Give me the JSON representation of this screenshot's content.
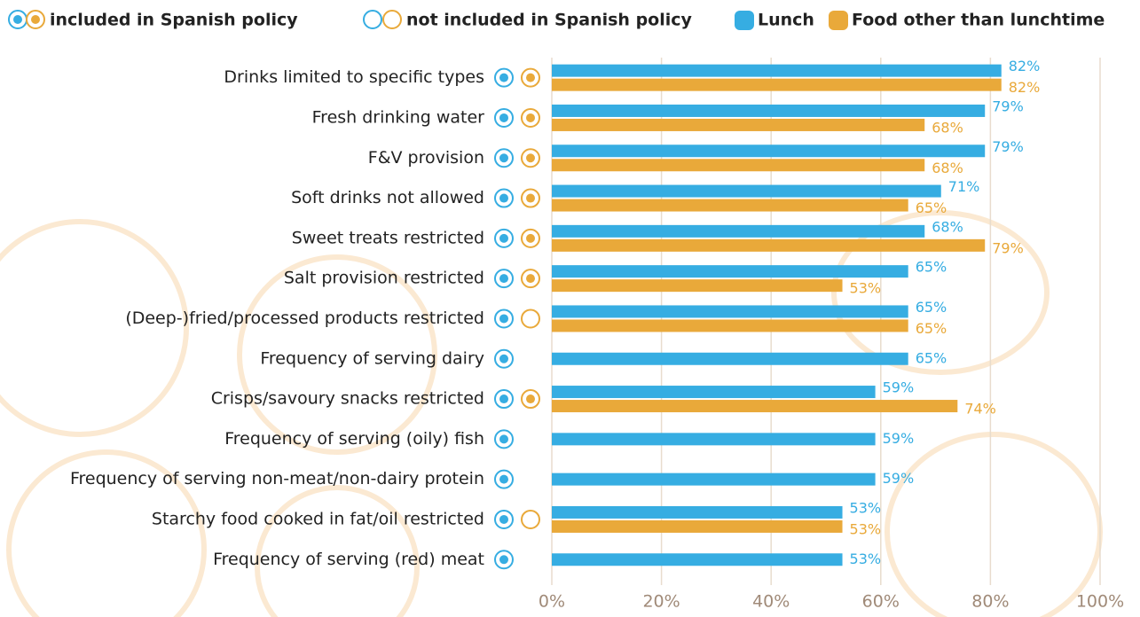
{
  "chart_data": {
    "type": "bar",
    "orientation": "horizontal",
    "policy_legend": [
      "included in Spanish policy",
      "not included in Spanish policy"
    ],
    "categories": [
      "Drinks limited to specific types",
      "Fresh drinking water",
      "F&V provision",
      "Soft drinks not allowed",
      "Sweet treats restricted",
      "Salt provision restricted",
      "(Deep-)fried/processed products restricted",
      "Frequency of serving dairy",
      "Crisps/savoury snacks restricted",
      "Frequency of serving (oily) fish",
      "Frequency of serving non-meat/non-dairy protein",
      "Starchy food cooked in fat/oil restricted",
      "Frequency of serving (red) meat"
    ],
    "series": [
      {
        "name": "Lunch",
        "color": "#36ade2",
        "values": [
          82,
          79,
          79,
          71,
          68,
          65,
          65,
          65,
          59,
          59,
          59,
          53,
          53
        ],
        "value_labels": [
          "82%",
          "79%",
          "79%",
          "71%",
          "68%",
          "65%",
          "65%",
          "65%",
          "59%",
          "59%",
          "59%",
          "53%",
          "53%"
        ],
        "included": [
          true,
          true,
          true,
          true,
          true,
          true,
          true,
          true,
          true,
          true,
          true,
          true,
          true
        ]
      },
      {
        "name": "Food other than lunchtime",
        "color": "#e9a93a",
        "values": [
          82,
          68,
          68,
          65,
          79,
          53,
          65,
          null,
          74,
          null,
          null,
          53,
          null
        ],
        "value_labels": [
          "82%",
          "68%",
          "68%",
          "65%",
          "79%",
          "53%",
          "65%",
          null,
          "74%",
          null,
          null,
          "53%",
          null
        ],
        "included": [
          true,
          true,
          true,
          true,
          true,
          true,
          false,
          null,
          true,
          null,
          null,
          false,
          null
        ]
      }
    ],
    "xlim": [
      0,
      100
    ],
    "xticks": [
      {
        "value": 0,
        "label": "0%"
      },
      {
        "value": 20,
        "label": "20%"
      },
      {
        "value": 40,
        "label": "40%"
      },
      {
        "value": 60,
        "label": "60%"
      },
      {
        "value": 80,
        "label": "80%"
      },
      {
        "value": 100,
        "label": "100%"
      }
    ],
    "grid": true
  }
}
